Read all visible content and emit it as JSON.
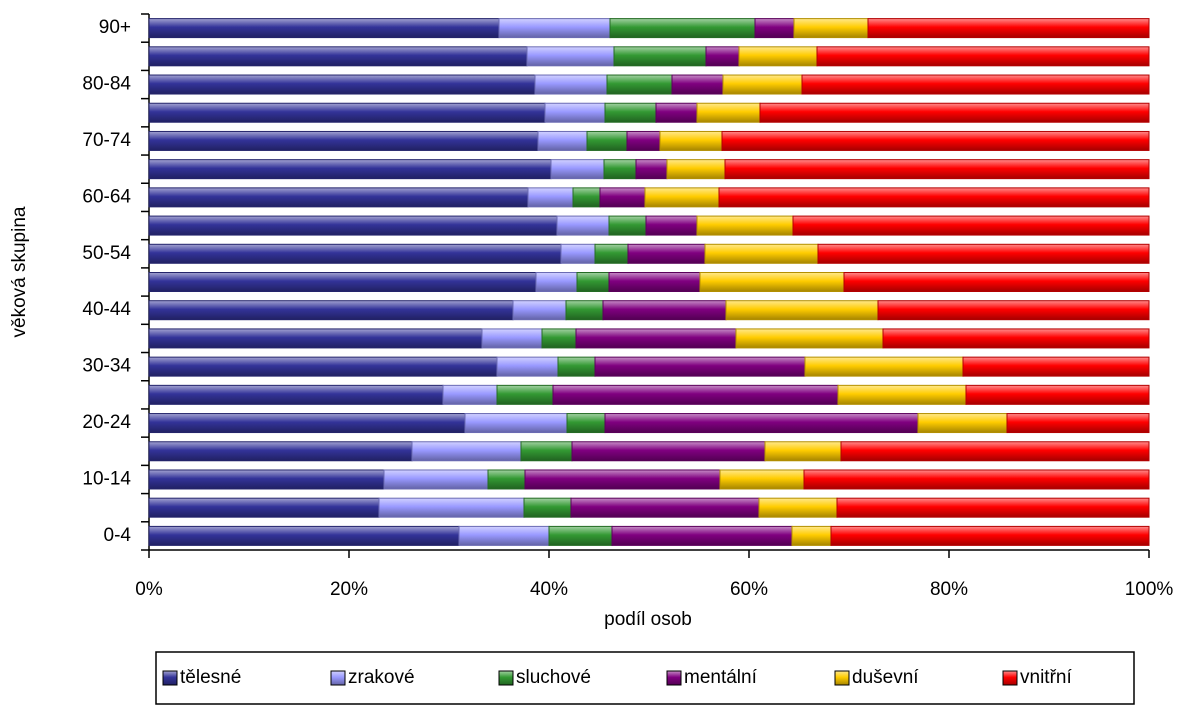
{
  "chart_data": {
    "type": "stacked-bar-horizontal",
    "xlabel": "podíl osob",
    "ylabel": "věková skupina",
    "categories": [
      "0-4",
      null,
      "10-14",
      null,
      "20-24",
      null,
      "30-34",
      null,
      "40-44",
      null,
      "50-54",
      null,
      "60-64",
      null,
      "70-74",
      null,
      "80-84",
      null,
      "90+"
    ],
    "xlim": [
      0,
      100
    ],
    "xticks": [
      {
        "value": 0,
        "label": "0%"
      },
      {
        "value": 20,
        "label": "20%"
      },
      {
        "value": 40,
        "label": "40%"
      },
      {
        "value": 60,
        "label": "60%"
      },
      {
        "value": 80,
        "label": "80%"
      },
      {
        "value": 100,
        "label": "100%"
      }
    ],
    "legend": "bottom",
    "series": [
      {
        "name": "tělesné",
        "color": "#333399",
        "values": [
          31,
          23,
          23.5,
          26.3,
          31.6,
          29.4,
          34.8,
          33.3,
          36.4,
          38.7,
          41.2,
          40.8,
          37.9,
          40.2,
          38.9,
          39.6,
          38.6,
          37.8,
          35.0
        ]
      },
      {
        "name": "zrakové",
        "color": "#9999ff",
        "values": [
          9,
          14.5,
          10.4,
          10.9,
          10.2,
          5.4,
          6.1,
          6.0,
          5.3,
          4.1,
          3.4,
          5.2,
          4.5,
          5.3,
          4.9,
          6.0,
          7.2,
          8.7,
          11.1
        ]
      },
      {
        "name": "sluchové",
        "color": "#339933",
        "values": [
          6.3,
          4.7,
          3.7,
          5.1,
          3.8,
          5.6,
          3.7,
          3.4,
          3.7,
          3.2,
          3.3,
          3.7,
          2.7,
          3.2,
          4.0,
          5.1,
          6.5,
          9.2,
          14.5
        ]
      },
      {
        "name": "mentální",
        "color": "#800080",
        "values": [
          18,
          18.8,
          19.5,
          19.3,
          31.3,
          28.5,
          21.0,
          16.0,
          12.3,
          9.1,
          7.7,
          5.1,
          4.5,
          3.1,
          3.3,
          4.1,
          5.1,
          3.3,
          3.9
        ]
      },
      {
        "name": "duševní",
        "color": "#ffcc00",
        "values": [
          3.9,
          7.8,
          8.4,
          7.6,
          8.9,
          12.8,
          15.8,
          14.7,
          15.2,
          14.4,
          11.3,
          9.6,
          7.4,
          5.8,
          6.2,
          6.3,
          7.9,
          7.8,
          7.4
        ]
      },
      {
        "name": "vnitřní",
        "color": "#ff0000",
        "values": [
          31.8,
          31.2,
          34.5,
          30.8,
          14.2,
          18.3,
          18.6,
          26.6,
          27.1,
          30.5,
          33.1,
          35.6,
          43.0,
          42.4,
          42.7,
          38.9,
          34.7,
          33.2,
          28.1
        ]
      }
    ]
  }
}
